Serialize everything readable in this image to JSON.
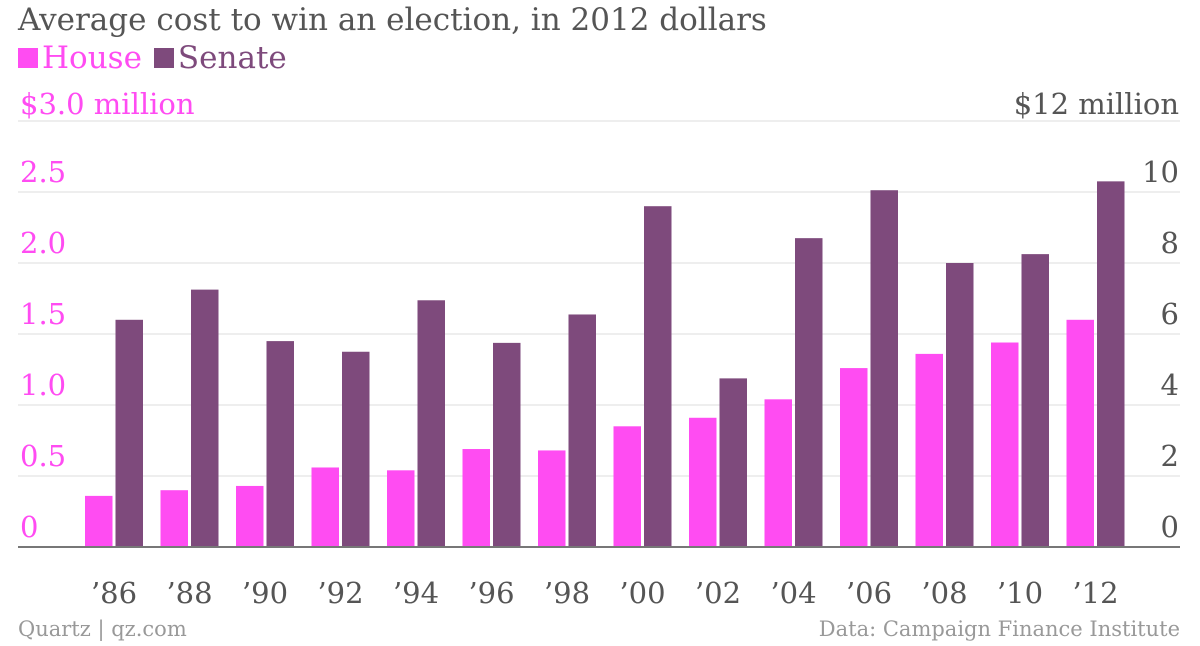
{
  "chart_data": {
    "type": "bar",
    "title": "Average cost to win an election, in 2012 dollars",
    "categories": [
      "’86",
      "’88",
      "’90",
      "’92",
      "’94",
      "’96",
      "’98",
      "’00",
      "’02",
      "’04",
      "’06",
      "’08",
      "’10",
      "’12"
    ],
    "series": [
      {
        "name": "House",
        "axis": "left",
        "color": "#ff4cf2",
        "values": [
          0.36,
          0.4,
          0.43,
          0.56,
          0.54,
          0.69,
          0.68,
          0.85,
          0.91,
          1.04,
          1.26,
          1.36,
          1.44,
          1.6
        ]
      },
      {
        "name": "Senate",
        "axis": "right",
        "color": "#7e4a7c",
        "values": [
          6.4,
          7.25,
          5.8,
          5.5,
          6.95,
          5.75,
          6.55,
          9.6,
          4.75,
          8.7,
          10.05,
          8.0,
          8.25,
          10.3
        ]
      }
    ],
    "left_axis": {
      "ylim": [
        0,
        3
      ],
      "ticks": [
        0,
        0.5,
        1.0,
        1.5,
        2.0,
        2.5,
        3.0
      ],
      "tick_labels": [
        "0",
        "0.5",
        "1.0",
        "1.5",
        "2.0",
        "2.5",
        "$3.0 million"
      ],
      "color": "#ff4cf2"
    },
    "right_axis": {
      "ylim": [
        0,
        12
      ],
      "ticks": [
        0,
        2,
        4,
        6,
        8,
        10,
        12
      ],
      "tick_labels": [
        "0",
        "2",
        "4",
        "6",
        "8",
        "10",
        "$12 million"
      ],
      "color": "#555555"
    },
    "grid": true,
    "legend_position": "top-left"
  },
  "footer": {
    "source_left": "Quartz | qz.com",
    "source_right": "Data: Campaign Finance Institute"
  },
  "colors": {
    "gridline": "#dddddd",
    "baseline": "#777777",
    "title_text": "#555555",
    "footer_text": "#999999"
  }
}
